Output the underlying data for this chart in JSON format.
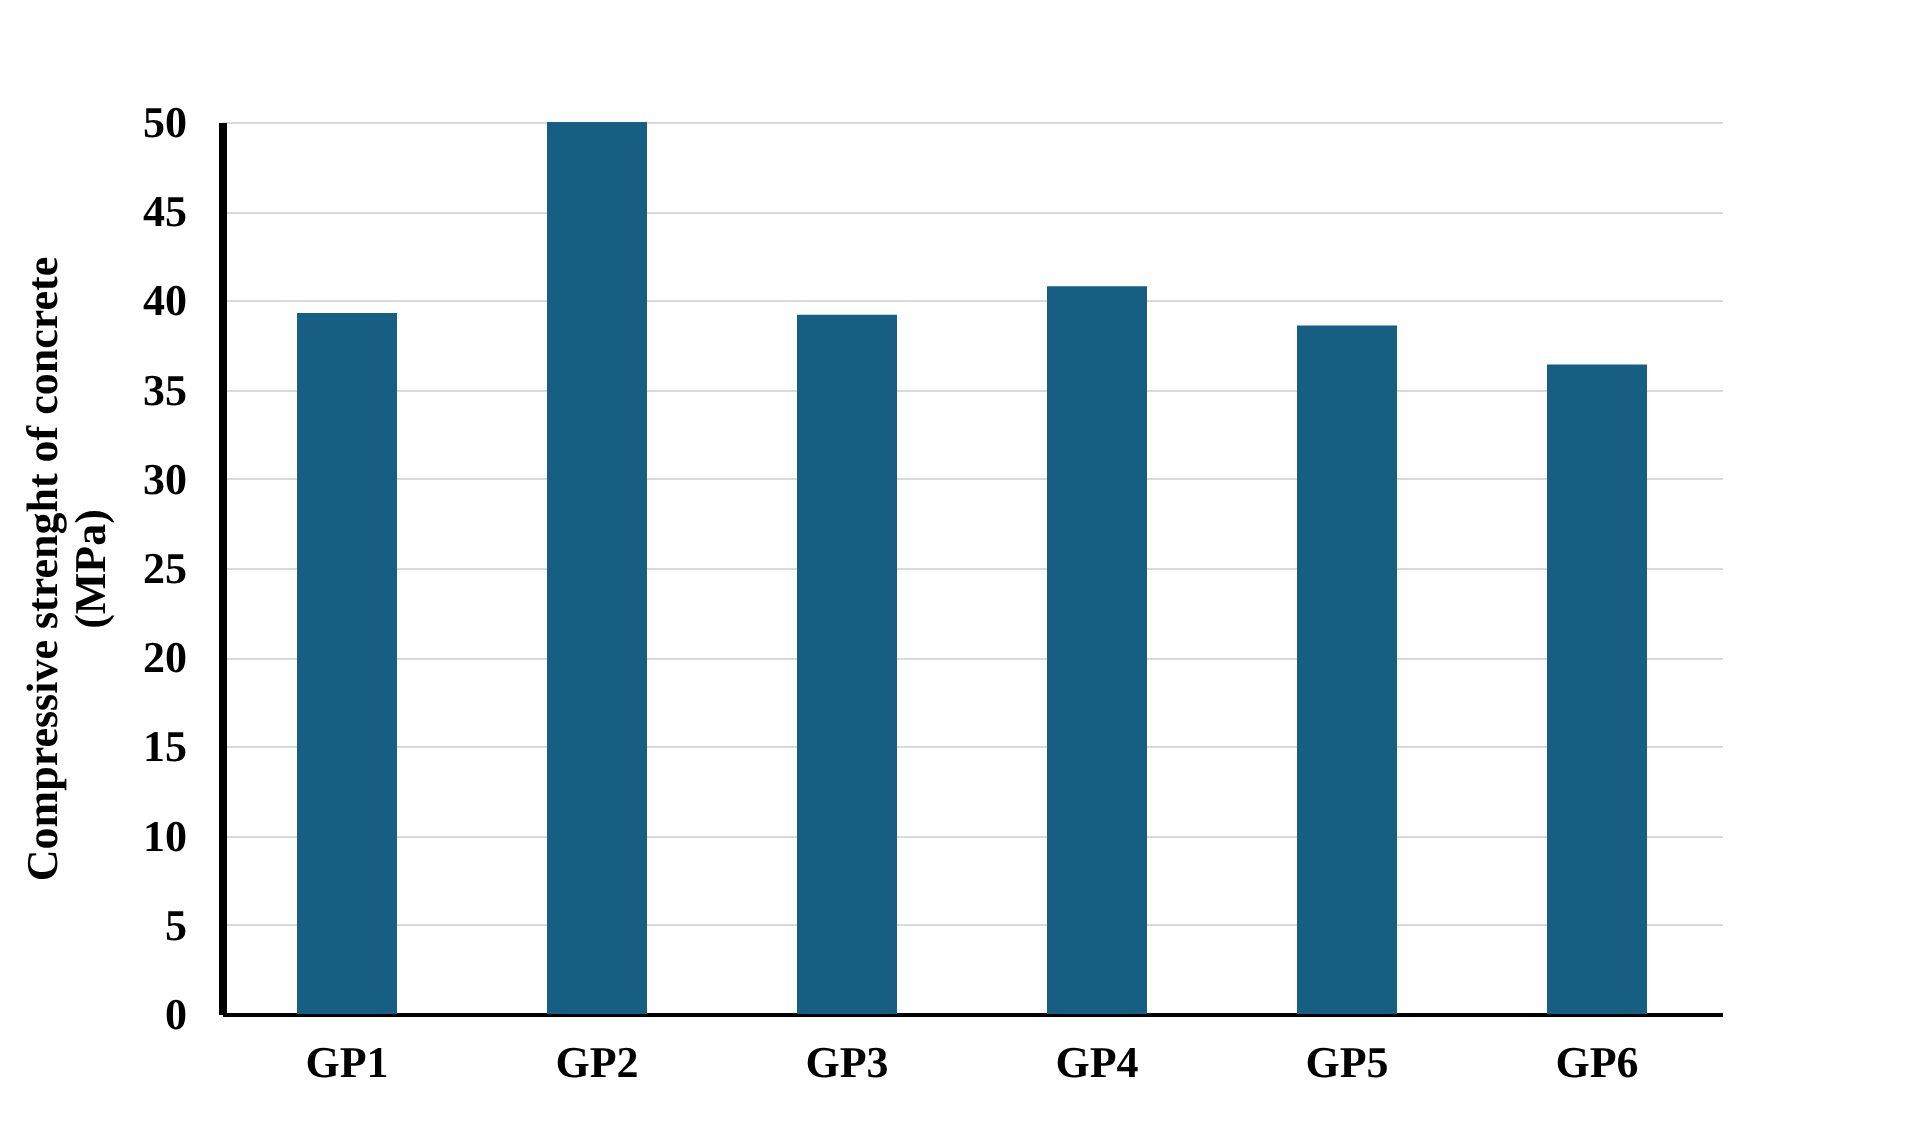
{
  "chart_data": {
    "type": "bar",
    "ylabel": "Compressive strenght of concrete (MPa)",
    "categories": [
      "GP1",
      "GP2",
      "GP3",
      "GP4",
      "GP5",
      "GP6"
    ],
    "values": [
      39.3,
      50,
      39.2,
      40.8,
      38.6,
      36.4
    ],
    "color": "#165f82",
    "ylim": [
      0,
      50
    ],
    "yticks": [
      0,
      5,
      10,
      15,
      20,
      25,
      30,
      35,
      40,
      45,
      50
    ],
    "grid": "y"
  }
}
